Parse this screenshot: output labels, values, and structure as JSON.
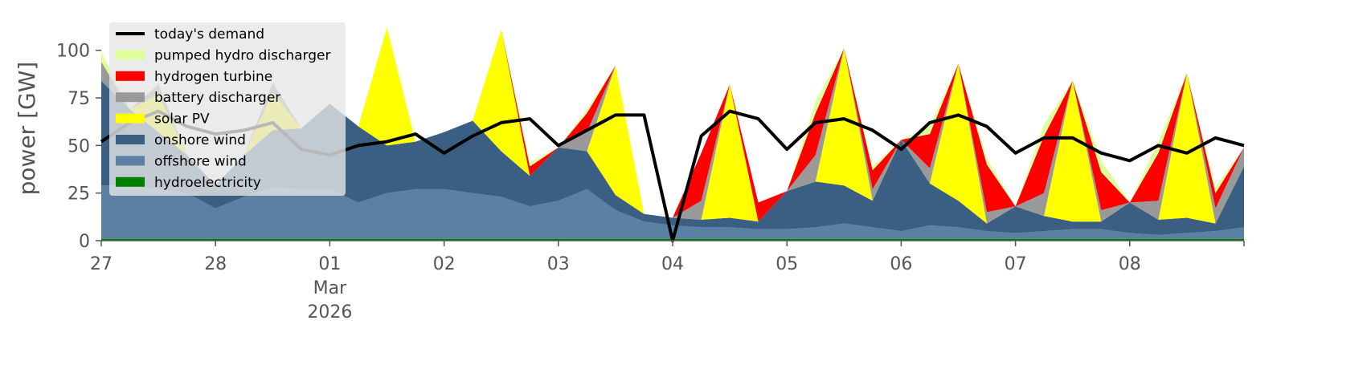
{
  "chart_data": {
    "type": "area",
    "ylabel": "power [GW]",
    "ylim": [
      0,
      118
    ],
    "xlim": [
      "2026-02-27T00:00",
      "2026-03-09T00:00"
    ],
    "grid": false,
    "legend_position": "top-left",
    "x_ticks": [
      {
        "date": "2026-02-27",
        "label": "27",
        "sub": []
      },
      {
        "date": "2026-02-28",
        "label": "28",
        "sub": []
      },
      {
        "date": "2026-03-01",
        "label": "01",
        "sub": [
          "Mar",
          "2026"
        ]
      },
      {
        "date": "2026-03-02",
        "label": "02",
        "sub": []
      },
      {
        "date": "2026-03-03",
        "label": "03",
        "sub": []
      },
      {
        "date": "2026-03-04",
        "label": "04",
        "sub": []
      },
      {
        "date": "2026-03-05",
        "label": "05",
        "sub": []
      },
      {
        "date": "2026-03-06",
        "label": "06",
        "sub": []
      },
      {
        "date": "2026-03-07",
        "label": "07",
        "sub": []
      },
      {
        "date": "2026-03-08",
        "label": "08",
        "sub": []
      }
    ],
    "y_ticks": [
      0,
      25,
      50,
      75,
      100
    ],
    "x": [
      "2026-02-27 00:00",
      "2026-02-27 06:00",
      "2026-02-27 12:00",
      "2026-02-27 18:00",
      "2026-02-28 00:00",
      "2026-02-28 06:00",
      "2026-02-28 12:00",
      "2026-02-28 18:00",
      "2026-03-01 00:00",
      "2026-03-01 06:00",
      "2026-03-01 12:00",
      "2026-03-01 18:00",
      "2026-03-02 00:00",
      "2026-03-02 06:00",
      "2026-03-02 12:00",
      "2026-03-02 18:00",
      "2026-03-03 00:00",
      "2026-03-03 06:00",
      "2026-03-03 12:00",
      "2026-03-03 18:00",
      "2026-03-04 00:00",
      "2026-03-04 06:00",
      "2026-03-04 12:00",
      "2026-03-04 18:00",
      "2026-03-05 00:00",
      "2026-03-05 06:00",
      "2026-03-05 12:00",
      "2026-03-05 18:00",
      "2026-03-06 00:00",
      "2026-03-06 06:00",
      "2026-03-06 12:00",
      "2026-03-06 18:00",
      "2026-03-07 00:00",
      "2026-03-07 06:00",
      "2026-03-07 12:00",
      "2026-03-07 18:00",
      "2026-03-08 00:00",
      "2026-03-08 06:00",
      "2026-03-08 12:00",
      "2026-03-08 18:00",
      "2026-03-09 00:00"
    ],
    "series": [
      {
        "name": "hydroelectricity",
        "color": "#008000",
        "values": [
          1,
          1,
          1,
          1,
          1,
          1,
          1,
          1,
          1,
          1,
          1,
          1,
          1,
          1,
          1,
          1,
          1,
          1,
          1,
          1,
          1,
          1,
          1,
          1,
          1,
          1,
          1,
          1,
          1,
          1,
          1,
          1,
          1,
          1,
          1,
          1,
          1,
          1,
          1,
          1,
          1
        ]
      },
      {
        "name": "offshore wind",
        "color": "#5b80a3",
        "values": [
          28,
          28,
          26,
          24,
          16,
          22,
          27,
          26,
          26,
          19,
          24,
          26,
          26,
          24,
          22,
          17,
          20,
          26,
          15,
          9,
          7,
          6,
          6,
          5,
          5,
          6,
          8,
          6,
          4,
          7,
          6,
          4,
          3,
          4,
          5,
          5,
          3,
          2,
          3,
          4,
          6
        ]
      },
      {
        "name": "onshore wind",
        "color": "#3a5f82",
        "values": [
          55,
          40,
          30,
          20,
          12,
          22,
          30,
          32,
          45,
          40,
          25,
          25,
          30,
          38,
          24,
          16,
          28,
          20,
          8,
          4,
          4,
          4,
          5,
          4,
          20,
          24,
          20,
          14,
          48,
          22,
          14,
          4,
          14,
          8,
          4,
          4,
          16,
          8,
          8,
          4,
          32
        ]
      },
      {
        "name": "solar PV",
        "color": "#ffff00",
        "values": [
          0,
          0,
          20,
          0,
          0,
          0,
          20,
          0,
          0,
          0,
          62,
          0,
          0,
          0,
          64,
          0,
          0,
          0,
          68,
          0,
          0,
          0,
          70,
          0,
          0,
          0,
          72,
          0,
          0,
          0,
          72,
          0,
          0,
          0,
          74,
          0,
          0,
          0,
          76,
          0,
          0
        ]
      },
      {
        "name": "battery discharger",
        "color": "#999999",
        "values": [
          10,
          0,
          5,
          0,
          0,
          0,
          5,
          0,
          0,
          0,
          0,
          0,
          0,
          0,
          0,
          0,
          0,
          10,
          0,
          0,
          0,
          10,
          0,
          0,
          0,
          14,
          0,
          6,
          0,
          8,
          0,
          6,
          0,
          12,
          0,
          6,
          0,
          10,
          0,
          8,
          10
        ]
      },
      {
        "name": "hydrogen turbine",
        "color": "#ff0000",
        "values": [
          0,
          0,
          0,
          0,
          0,
          0,
          0,
          0,
          0,
          0,
          0,
          0,
          0,
          0,
          0,
          5,
          0,
          10,
          0,
          0,
          0,
          25,
          0,
          10,
          0,
          22,
          0,
          10,
          0,
          18,
          0,
          25,
          0,
          30,
          0,
          20,
          0,
          25,
          0,
          8,
          0
        ]
      },
      {
        "name": "pumped hydro discharger",
        "color": "#ddff99",
        "values": [
          5,
          0,
          0,
          0,
          0,
          0,
          0,
          0,
          0,
          0,
          0,
          0,
          0,
          0,
          0,
          2,
          0,
          2,
          0,
          0,
          0,
          0,
          0,
          0,
          0,
          6,
          0,
          2,
          0,
          4,
          0,
          3,
          0,
          6,
          0,
          6,
          0,
          6,
          0,
          3,
          0
        ]
      }
    ],
    "demand": {
      "name": "today's demand",
      "color": "#000000",
      "values": [
        52,
        62,
        68,
        60,
        56,
        58,
        62,
        48,
        45,
        50,
        52,
        56,
        46,
        55,
        62,
        64,
        50,
        58,
        66,
        66,
        0,
        55,
        68,
        64,
        48,
        62,
        64,
        58,
        48,
        62,
        66,
        60,
        46,
        54,
        54,
        46,
        42,
        50,
        46,
        54,
        50
      ]
    }
  }
}
